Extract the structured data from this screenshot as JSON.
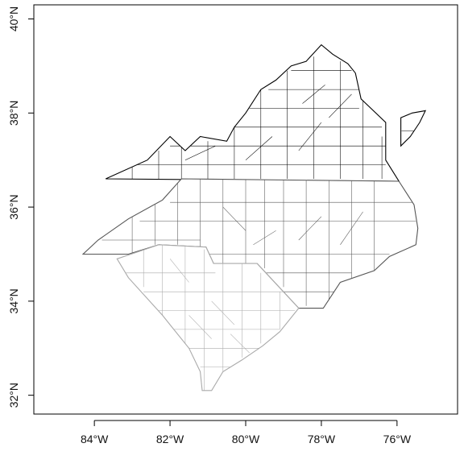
{
  "map": {
    "xlim": [
      -85.6,
      -74.4
    ],
    "ylim": [
      31.6,
      40.3
    ],
    "x_ticks": [
      {
        "value": -84,
        "label": "84°W"
      },
      {
        "value": -82,
        "label": "82°W"
      },
      {
        "value": -80,
        "label": "80°W"
      },
      {
        "value": -78,
        "label": "78°W"
      },
      {
        "value": -76,
        "label": "76°W"
      }
    ],
    "y_ticks": [
      {
        "value": 32,
        "label": "32°N"
      },
      {
        "value": 34,
        "label": "34°N"
      },
      {
        "value": 36,
        "label": "36°N"
      },
      {
        "value": 38,
        "label": "38°N"
      },
      {
        "value": 40,
        "label": "40°N"
      }
    ],
    "regions": [
      {
        "id": "va",
        "style": "state-va",
        "outline": [
          [
            -83.7,
            36.6
          ],
          [
            -82.6,
            37.0
          ],
          [
            -82.0,
            37.5
          ],
          [
            -81.6,
            37.2
          ],
          [
            -81.2,
            37.5
          ],
          [
            -80.5,
            37.4
          ],
          [
            -80.3,
            37.7
          ],
          [
            -80.0,
            38.0
          ],
          [
            -79.6,
            38.5
          ],
          [
            -79.2,
            38.7
          ],
          [
            -78.8,
            39.0
          ],
          [
            -78.4,
            39.1
          ],
          [
            -78.0,
            39.45
          ],
          [
            -77.7,
            39.25
          ],
          [
            -77.3,
            39.05
          ],
          [
            -77.1,
            38.85
          ],
          [
            -76.95,
            38.3
          ],
          [
            -76.3,
            37.8
          ],
          [
            -76.3,
            37.0
          ],
          [
            -75.95,
            36.55
          ]
        ],
        "counties": [
          [
            [
              -83.0,
              36.6
            ],
            [
              -83.0,
              37.0
            ]
          ],
          [
            [
              -82.3,
              36.6
            ],
            [
              -82.3,
              37.2
            ]
          ],
          [
            [
              -81.7,
              36.6
            ],
            [
              -81.7,
              37.3
            ]
          ],
          [
            [
              -81.0,
              36.6
            ],
            [
              -81.0,
              37.4
            ]
          ],
          [
            [
              -80.3,
              36.6
            ],
            [
              -80.3,
              37.7
            ]
          ],
          [
            [
              -79.6,
              36.6
            ],
            [
              -79.6,
              38.5
            ]
          ],
          [
            [
              -78.9,
              36.6
            ],
            [
              -78.9,
              38.9
            ]
          ],
          [
            [
              -78.2,
              36.6
            ],
            [
              -78.2,
              39.2
            ]
          ],
          [
            [
              -77.5,
              36.6
            ],
            [
              -77.5,
              39.1
            ]
          ],
          [
            [
              -76.9,
              36.6
            ],
            [
              -76.9,
              38.3
            ]
          ],
          [
            [
              -76.4,
              36.6
            ],
            [
              -76.4,
              37.5
            ]
          ],
          [
            [
              -83.3,
              36.9
            ],
            [
              -76.3,
              36.9
            ]
          ],
          [
            [
              -82.0,
              37.3
            ],
            [
              -76.3,
              37.3
            ]
          ],
          [
            [
              -80.4,
              37.7
            ],
            [
              -76.4,
              37.7
            ]
          ],
          [
            [
              -79.9,
              38.1
            ],
            [
              -77.0,
              38.1
            ]
          ],
          [
            [
              -79.4,
              38.5
            ],
            [
              -77.0,
              38.5
            ]
          ],
          [
            [
              -78.8,
              38.9
            ],
            [
              -77.2,
              38.9
            ]
          ],
          [
            [
              -80.0,
              37.0
            ],
            [
              -79.3,
              37.5
            ]
          ],
          [
            [
              -78.6,
              37.2
            ],
            [
              -78.0,
              37.8
            ]
          ],
          [
            [
              -77.8,
              37.9
            ],
            [
              -77.2,
              38.4
            ]
          ],
          [
            [
              -81.6,
              37.0
            ],
            [
              -80.8,
              37.3
            ]
          ],
          [
            [
              -78.5,
              38.2
            ],
            [
              -77.9,
              38.6
            ]
          ]
        ]
      },
      {
        "id": "va-eastern-shore",
        "style": "state-va",
        "outline": [
          [
            -75.9,
            37.3
          ],
          [
            -75.9,
            37.9
          ],
          [
            -75.6,
            38.0
          ],
          [
            -75.25,
            38.05
          ],
          [
            -75.4,
            37.8
          ],
          [
            -75.65,
            37.5
          ],
          [
            -75.9,
            37.3
          ]
        ],
        "counties": [
          [
            [
              -75.88,
              37.62
            ],
            [
              -75.55,
              37.62
            ]
          ]
        ]
      },
      {
        "id": "nc",
        "style": "state-nc",
        "outline": [
          [
            -75.95,
            36.55
          ],
          [
            -75.55,
            36.05
          ],
          [
            -75.45,
            35.55
          ],
          [
            -75.5,
            35.2
          ],
          [
            -76.2,
            34.95
          ],
          [
            -76.6,
            34.65
          ],
          [
            -77.5,
            34.4
          ],
          [
            -77.95,
            33.85
          ],
          [
            -78.6,
            33.85
          ],
          [
            -79.7,
            34.8
          ],
          [
            -80.85,
            34.8
          ],
          [
            -81.05,
            35.15
          ],
          [
            -82.3,
            35.2
          ],
          [
            -83.1,
            35.0
          ],
          [
            -84.3,
            35.0
          ],
          [
            -83.9,
            35.3
          ],
          [
            -83.1,
            35.75
          ],
          [
            -82.2,
            36.15
          ],
          [
            -81.7,
            36.6
          ],
          [
            -75.95,
            36.55
          ]
        ],
        "counties": [
          [
            [
              -83.0,
              35.0
            ],
            [
              -83.0,
              35.8
            ]
          ],
          [
            [
              -82.4,
              35.2
            ],
            [
              -82.4,
              36.1
            ]
          ],
          [
            [
              -81.8,
              35.2
            ],
            [
              -81.8,
              36.5
            ]
          ],
          [
            [
              -81.2,
              35.1
            ],
            [
              -81.2,
              36.6
            ]
          ],
          [
            [
              -80.6,
              34.8
            ],
            [
              -80.6,
              36.6
            ]
          ],
          [
            [
              -80.0,
              34.8
            ],
            [
              -80.0,
              36.6
            ]
          ],
          [
            [
              -79.5,
              34.7
            ],
            [
              -79.5,
              36.6
            ]
          ],
          [
            [
              -79.0,
              34.3
            ],
            [
              -79.0,
              36.6
            ]
          ],
          [
            [
              -78.4,
              33.9
            ],
            [
              -78.4,
              36.6
            ]
          ],
          [
            [
              -77.8,
              34.0
            ],
            [
              -77.8,
              36.6
            ]
          ],
          [
            [
              -77.2,
              34.3
            ],
            [
              -77.2,
              36.6
            ]
          ],
          [
            [
              -76.6,
              34.6
            ],
            [
              -76.6,
              36.6
            ]
          ],
          [
            [
              -83.8,
              35.3
            ],
            [
              -81.2,
              35.3
            ]
          ],
          [
            [
              -82.8,
              35.7
            ],
            [
              -75.5,
              35.7
            ]
          ],
          [
            [
              -82.0,
              36.1
            ],
            [
              -75.6,
              36.1
            ]
          ],
          [
            [
              -81.2,
              35.0
            ],
            [
              -76.2,
              35.0
            ]
          ],
          [
            [
              -80.6,
              34.6
            ],
            [
              -77.2,
              34.6
            ]
          ],
          [
            [
              -79.0,
              34.2
            ],
            [
              -77.6,
              34.2
            ]
          ],
          [
            [
              -80.6,
              36.0
            ],
            [
              -80.0,
              35.5
            ]
          ],
          [
            [
              -78.6,
              35.3
            ],
            [
              -78.0,
              35.8
            ]
          ],
          [
            [
              -77.5,
              35.2
            ],
            [
              -76.9,
              35.9
            ]
          ],
          [
            [
              -79.8,
              35.2
            ],
            [
              -79.2,
              35.5
            ]
          ]
        ]
      },
      {
        "id": "sc",
        "style": "state-sc",
        "outline": [
          [
            -83.4,
            34.9
          ],
          [
            -82.85,
            35.05
          ],
          [
            -82.3,
            35.2
          ],
          [
            -81.05,
            35.15
          ],
          [
            -80.85,
            34.8
          ],
          [
            -79.7,
            34.8
          ],
          [
            -78.6,
            33.85
          ],
          [
            -79.1,
            33.35
          ],
          [
            -79.55,
            33.05
          ],
          [
            -80.1,
            32.75
          ],
          [
            -80.6,
            32.5
          ],
          [
            -80.9,
            32.1
          ],
          [
            -81.15,
            32.1
          ],
          [
            -81.2,
            32.5
          ],
          [
            -81.5,
            33.0
          ],
          [
            -81.95,
            33.45
          ],
          [
            -82.2,
            33.7
          ],
          [
            -82.65,
            34.1
          ],
          [
            -83.1,
            34.5
          ],
          [
            -83.4,
            34.9
          ]
        ],
        "counties": [
          [
            [
              -82.7,
              34.3
            ],
            [
              -82.7,
              35.1
            ]
          ],
          [
            [
              -82.2,
              33.7
            ],
            [
              -82.2,
              35.2
            ]
          ],
          [
            [
              -81.6,
              33.1
            ],
            [
              -81.6,
              35.2
            ]
          ],
          [
            [
              -81.1,
              32.1
            ],
            [
              -81.1,
              35.1
            ]
          ],
          [
            [
              -80.6,
              32.5
            ],
            [
              -80.6,
              34.8
            ]
          ],
          [
            [
              -80.1,
              32.8
            ],
            [
              -80.1,
              34.8
            ]
          ],
          [
            [
              -79.6,
              33.1
            ],
            [
              -79.6,
              34.6
            ]
          ],
          [
            [
              -79.1,
              33.4
            ],
            [
              -79.1,
              34.2
            ]
          ],
          [
            [
              -83.2,
              34.6
            ],
            [
              -80.8,
              34.6
            ]
          ],
          [
            [
              -82.7,
              34.2
            ],
            [
              -79.0,
              34.2
            ]
          ],
          [
            [
              -82.3,
              33.8
            ],
            [
              -78.7,
              33.8
            ]
          ],
          [
            [
              -81.9,
              33.4
            ],
            [
              -79.1,
              33.4
            ]
          ],
          [
            [
              -81.5,
              33.0
            ],
            [
              -79.6,
              33.0
            ]
          ],
          [
            [
              -81.2,
              32.6
            ],
            [
              -80.4,
              32.6
            ]
          ],
          [
            [
              -82.0,
              34.9
            ],
            [
              -81.5,
              34.4
            ]
          ],
          [
            [
              -80.9,
              34.0
            ],
            [
              -80.3,
              33.5
            ]
          ],
          [
            [
              -81.5,
              33.7
            ],
            [
              -80.9,
              33.2
            ]
          ],
          [
            [
              -80.4,
              33.3
            ],
            [
              -79.9,
              32.9
            ]
          ]
        ]
      }
    ]
  }
}
